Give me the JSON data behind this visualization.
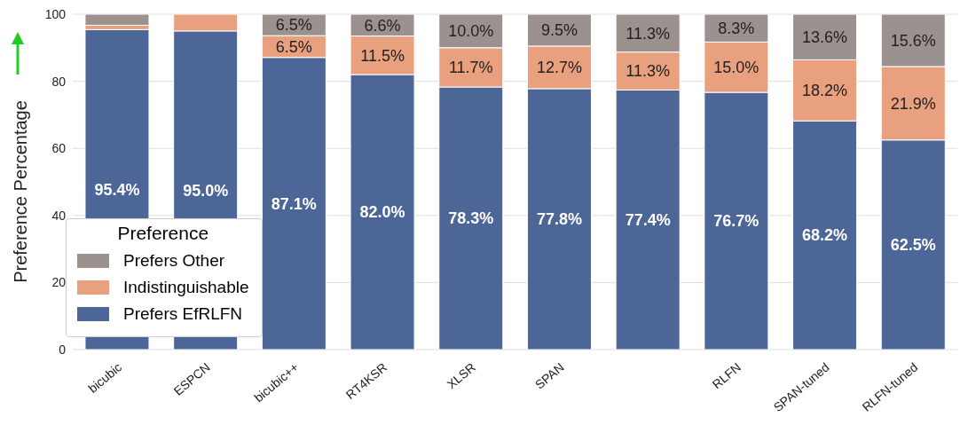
{
  "chart_data": {
    "type": "bar",
    "stacked": true,
    "ylabel": "Preference Percentage",
    "legend_title": "Preference",
    "legend": "bottom left",
    "grid": "y",
    "categories": [
      "bicubic",
      "ESPCN",
      "bicubic++",
      "RT4KSR",
      "XLSR",
      "SPAN",
      null,
      "RLFN",
      "SPAN-tuned",
      "RLFN-tuned"
    ],
    "ylim": [
      0,
      100
    ],
    "yticks": [
      0,
      20,
      40,
      60,
      80,
      100
    ],
    "series": [
      {
        "name": "Prefers EfRLFN",
        "color": "#4c6698",
        "values": [
          95.4,
          95.0,
          87.1,
          82.0,
          78.3,
          77.8,
          77.4,
          76.7,
          68.2,
          62.5
        ],
        "value_labels": [
          "95.4%",
          "95.0%",
          "87.1%",
          "82.0%",
          "78.3%",
          "77.8%",
          "77.4%",
          "76.7%",
          "68.2%",
          "62.5%"
        ]
      },
      {
        "name": "Indistinguishable",
        "color": "#e9a07e",
        "values": [
          1.3,
          5.0,
          6.5,
          11.5,
          11.7,
          12.7,
          11.3,
          15.0,
          18.2,
          21.9
        ],
        "value_labels": [
          null,
          null,
          "6.5%",
          "11.5%",
          "11.7%",
          "12.7%",
          "11.3%",
          "15.0%",
          "18.2%",
          "21.9%"
        ]
      },
      {
        "name": "Prefers Other",
        "color": "#9b918f",
        "values": [
          3.3,
          0,
          6.5,
          6.6,
          10.0,
          9.5,
          11.3,
          8.3,
          13.6,
          15.6
        ],
        "value_labels": [
          null,
          null,
          "6.5%",
          "6.6%",
          "10.0%",
          "9.5%",
          "11.3%",
          "8.3%",
          "13.6%",
          "15.6%"
        ]
      }
    ]
  }
}
